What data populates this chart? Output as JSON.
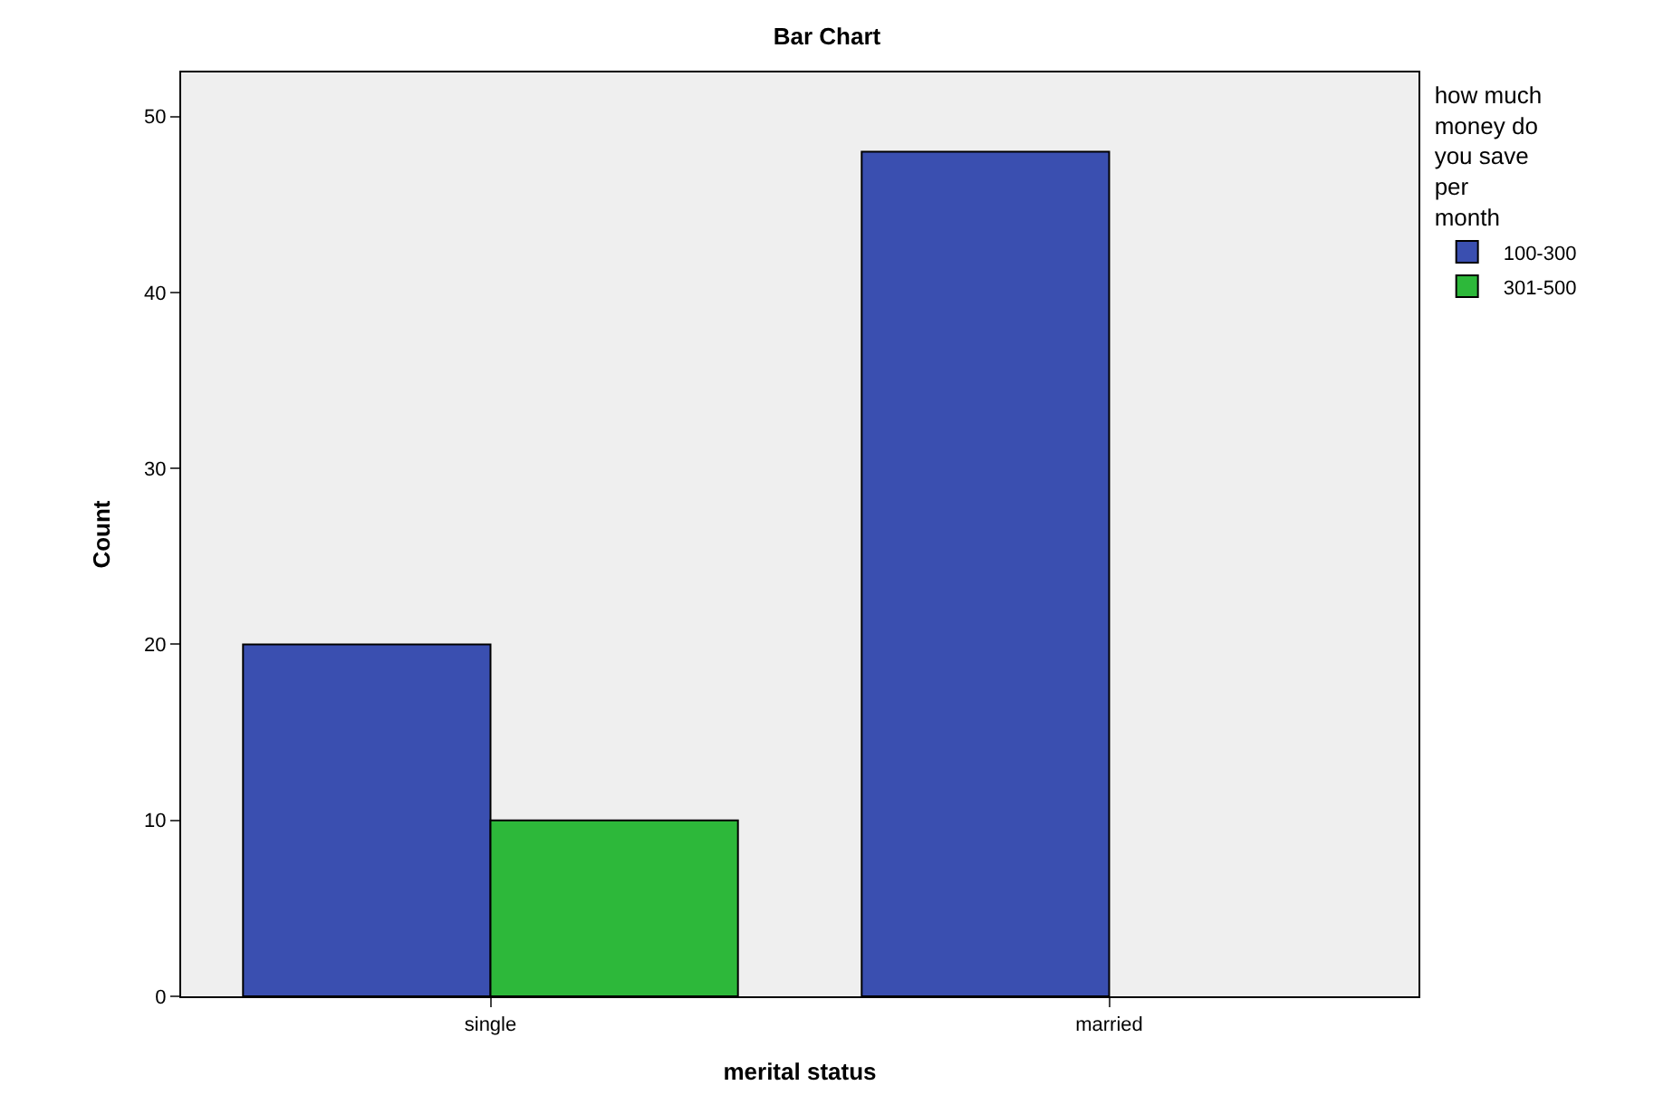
{
  "chart_data": {
    "type": "bar",
    "title": "Bar Chart",
    "xlabel": "merital status",
    "ylabel": "Count",
    "legend_title": "how much money do you save per month",
    "categories": [
      "single",
      "married"
    ],
    "series": [
      {
        "name": "100-300",
        "color": "#3a4fb0",
        "values": [
          20,
          48
        ]
      },
      {
        "name": "301-500",
        "color": "#2db83a",
        "values": [
          10,
          null
        ]
      }
    ],
    "ylim": [
      0,
      52.5
    ],
    "yticks": [
      0,
      10,
      20,
      30,
      40,
      50
    ],
    "grid": false,
    "legend": "right"
  }
}
